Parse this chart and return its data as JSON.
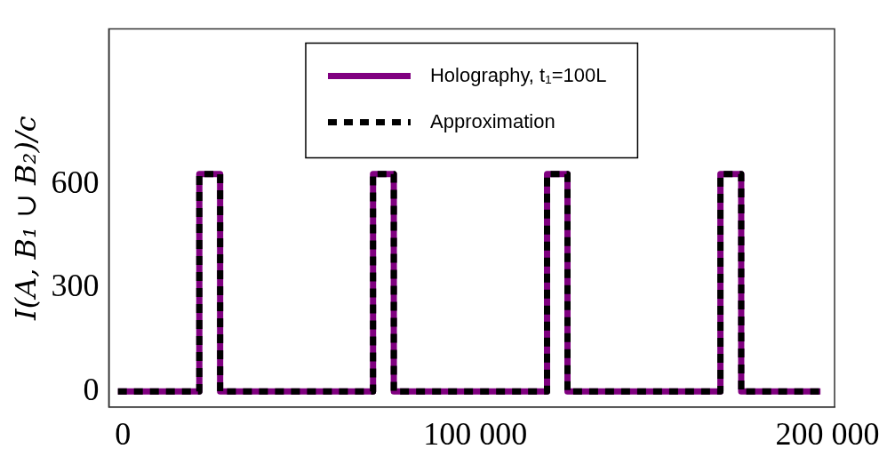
{
  "chart_data": {
    "type": "line",
    "ylabel": "I(A, B₁ ∪ B₂)/c",
    "x": [
      -1400,
      21700,
      21700,
      27600,
      27600,
      71000,
      71000,
      76900,
      76900,
      120400,
      120400,
      126200,
      126200,
      169600,
      169600,
      175500,
      175500,
      198000
    ],
    "series": [
      {
        "name": "Holography, t₁=100L",
        "color": "#800080",
        "line_style": "solid",
        "values": [
          0,
          0,
          630,
          630,
          0,
          0,
          630,
          630,
          0,
          0,
          630,
          630,
          0,
          0,
          630,
          630,
          0,
          0
        ]
      },
      {
        "name": "Approximation",
        "color": "#000000",
        "line_style": "dashed",
        "values": [
          0,
          0,
          630,
          630,
          0,
          0,
          630,
          630,
          0,
          0,
          630,
          630,
          0,
          0,
          630,
          630,
          0,
          0
        ]
      }
    ],
    "xlim": [
      -4000,
      202000
    ],
    "xticks": [
      0,
      {
        "value": 100000,
        "label": "100 000"
      },
      {
        "value": 200000,
        "label": "200 000"
      }
    ],
    "ylim": [
      -45,
      1050
    ],
    "yticks": [
      0,
      300,
      600
    ],
    "grid": false,
    "legend": "top",
    "marker": "none"
  }
}
